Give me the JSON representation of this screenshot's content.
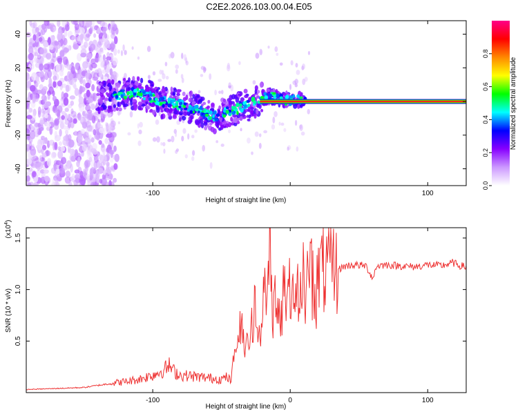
{
  "title": "C2E2.2026.103.00.04.E05",
  "chart_data": [
    {
      "type": "heatmap",
      "name": "spectrogram",
      "xlabel": "Height of straight line (km)",
      "ylabel": "Frequency (Hz)",
      "xlim": [
        -192,
        128
      ],
      "ylim": [
        -50,
        48
      ],
      "xticks": [
        -100,
        0,
        100
      ],
      "xtick_labels": [
        "-100",
        "",
        "100"
      ],
      "yticks": [
        -40,
        -20,
        0,
        20,
        40
      ],
      "ridge": {
        "x": [
          -130,
          -115,
          -105,
          -95,
          -85,
          -75,
          -65,
          -55,
          -50,
          -45,
          -40,
          -35,
          -30,
          -25,
          -20,
          -15,
          -10,
          -5,
          0,
          5,
          10,
          20,
          40,
          60,
          80,
          100,
          128
        ],
        "y": [
          3,
          5,
          4,
          0,
          -1,
          -3,
          -6,
          -9,
          -7,
          -6,
          -5,
          -3,
          -2,
          0,
          2,
          3,
          2,
          1,
          1,
          1,
          0,
          0,
          0,
          0,
          0,
          0,
          0
        ]
      },
      "colorbar": {
        "label": "Normalized spectral amplitude",
        "range": [
          0,
          1
        ],
        "ticks": [
          0.0,
          0.2,
          0.4,
          0.6,
          0.8
        ],
        "tick_labels": [
          "0.0",
          "0.2",
          "0.4",
          "0.6",
          "0.8"
        ],
        "colors": [
          "#ffffff",
          "#cc99ff",
          "#8800ff",
          "#0000ff",
          "#00ffff",
          "#00ff00",
          "#ffff00",
          "#ff8800",
          "#ff0000",
          "#ff0088"
        ]
      }
    },
    {
      "type": "line",
      "name": "snr",
      "xlabel": "Height of straight line (km)",
      "ylabel": "SNR (10 * v/v)",
      "multiplier_base": "(x10",
      "multiplier_exp": "4",
      "multiplier_close": ")",
      "xlim": [
        -192,
        128
      ],
      "ylim": [
        0,
        16000
      ],
      "xticks": [
        -100,
        0,
        100
      ],
      "xtick_labels": [
        "-100",
        "0",
        "100"
      ],
      "yticks": [
        5000,
        10000,
        15000
      ],
      "ytick_labels": [
        "0.5",
        "1.0",
        "1.5"
      ],
      "series": [
        {
          "name": "SNR",
          "color": "#ee3333",
          "x": [
            -192,
            -170,
            -150,
            -135,
            -125,
            -118,
            -110,
            -100,
            -92,
            -88,
            -85,
            -80,
            -72,
            -65,
            -58,
            -50,
            -46,
            -43,
            -40,
            -36,
            -32,
            -28,
            -25,
            -22,
            -19,
            -17,
            -15,
            -13,
            -11,
            -8,
            -5,
            -2,
            1,
            4,
            7,
            10,
            14,
            18,
            22,
            26,
            30,
            34,
            38,
            45,
            55,
            60,
            63,
            70,
            80,
            90,
            100,
            110,
            118,
            124,
            128
          ],
          "y": [
            300,
            400,
            500,
            800,
            1000,
            1100,
            1300,
            1700,
            2200,
            2600,
            2100,
            1700,
            1600,
            1500,
            1400,
            1300,
            1500,
            1100,
            4500,
            6000,
            4000,
            6500,
            8000,
            4500,
            11000,
            7000,
            15500,
            6500,
            9000,
            8000,
            9500,
            8000,
            10500,
            9000,
            11000,
            10000,
            11500,
            10500,
            12000,
            11500,
            12500,
            11800,
            12200,
            12400,
            12300,
            11100,
            12300,
            12400,
            12300,
            12200,
            12400,
            12300,
            12600,
            12300,
            12200
          ]
        }
      ]
    }
  ]
}
